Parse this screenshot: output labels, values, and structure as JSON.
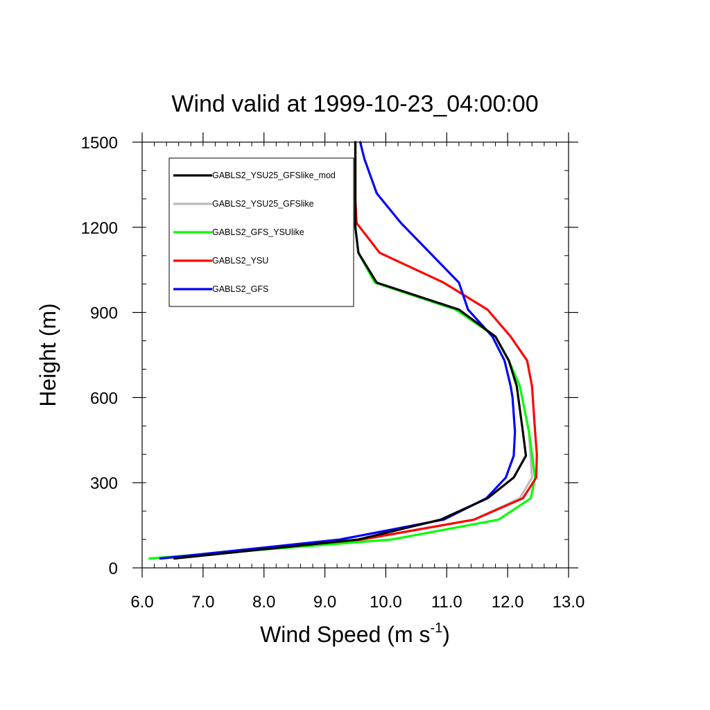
{
  "chart_data": {
    "type": "line",
    "title": "Wind valid at 1999-10-23_04:00:00",
    "xlabel": "Wind Speed (m s",
    "xlabel_sup": "-1",
    "xlabel_tail": ")",
    "ylabel": "Height (m)",
    "xlim": [
      6.0,
      13.0
    ],
    "ylim": [
      0,
      1500
    ],
    "x_ticks": [
      6.0,
      7.0,
      8.0,
      9.0,
      10.0,
      11.0,
      12.0,
      13.0
    ],
    "x_tick_labels": [
      "6.0",
      "7.0",
      "8.0",
      "9.0",
      "10.0",
      "11.0",
      "12.0",
      "13.0"
    ],
    "y_ticks": [
      0,
      300,
      600,
      900,
      1200,
      1500
    ],
    "y_tick_labels": [
      "0",
      "300",
      "600",
      "900",
      "1200",
      "1500"
    ],
    "grid": false,
    "legend_position": "top-left",
    "series": [
      {
        "name": "GABLS2_YSU25_GFSlike_mod",
        "color": "#000000",
        "points": [
          [
            6.53,
            33
          ],
          [
            9.55,
            100
          ],
          [
            10.9,
            170
          ],
          [
            11.67,
            245
          ],
          [
            12.1,
            318
          ],
          [
            12.3,
            395
          ],
          [
            12.25,
            480
          ],
          [
            12.15,
            640
          ],
          [
            12.02,
            730
          ],
          [
            11.8,
            815
          ],
          [
            11.2,
            910
          ],
          [
            9.85,
            1005
          ],
          [
            9.55,
            1110
          ],
          [
            9.5,
            1200
          ],
          [
            9.5,
            1500
          ]
        ]
      },
      {
        "name": "GABLS2_YSU25_GFSlike",
        "color": "#bbbbbb",
        "points": [
          [
            6.28,
            33
          ],
          [
            9.65,
            100
          ],
          [
            11.45,
            170
          ],
          [
            12.2,
            245
          ],
          [
            12.4,
            318
          ],
          [
            12.35,
            480
          ],
          [
            12.2,
            640
          ],
          [
            12.02,
            730
          ],
          [
            11.8,
            815
          ],
          [
            11.15,
            910
          ],
          [
            9.82,
            1005
          ],
          [
            9.55,
            1110
          ],
          [
            9.5,
            1200
          ],
          [
            9.5,
            1500
          ]
        ]
      },
      {
        "name": "GABLS2_GFS_YSUlike",
        "color": "#00ff00",
        "points": [
          [
            6.12,
            33
          ],
          [
            10.1,
            100
          ],
          [
            11.85,
            170
          ],
          [
            12.38,
            245
          ],
          [
            12.45,
            318
          ],
          [
            12.35,
            480
          ],
          [
            12.2,
            640
          ],
          [
            12.02,
            730
          ],
          [
            11.8,
            815
          ],
          [
            11.15,
            910
          ],
          [
            9.82,
            1005
          ],
          [
            9.55,
            1110
          ],
          [
            9.5,
            1200
          ],
          [
            9.5,
            1500
          ]
        ]
      },
      {
        "name": "GABLS2_YSU",
        "color": "#ff0000",
        "points": [
          [
            6.3,
            33
          ],
          [
            9.6,
            100
          ],
          [
            11.45,
            170
          ],
          [
            12.25,
            245
          ],
          [
            12.47,
            318
          ],
          [
            12.48,
            400
          ],
          [
            12.45,
            480
          ],
          [
            12.4,
            640
          ],
          [
            12.32,
            730
          ],
          [
            12.05,
            815
          ],
          [
            11.67,
            910
          ],
          [
            10.95,
            1005
          ],
          [
            9.9,
            1110
          ],
          [
            9.52,
            1215
          ],
          [
            9.5,
            1300
          ],
          [
            9.5,
            1500
          ]
        ]
      },
      {
        "name": "GABLS2_GFS",
        "color": "#0000ff",
        "points": [
          [
            6.3,
            33
          ],
          [
            9.25,
            100
          ],
          [
            10.95,
            170
          ],
          [
            11.65,
            245
          ],
          [
            11.97,
            318
          ],
          [
            12.1,
            395
          ],
          [
            12.12,
            480
          ],
          [
            12.08,
            600
          ],
          [
            12.05,
            640
          ],
          [
            11.95,
            730
          ],
          [
            11.75,
            815
          ],
          [
            11.35,
            910
          ],
          [
            11.2,
            1005
          ],
          [
            10.25,
            1215
          ],
          [
            9.85,
            1320
          ],
          [
            9.65,
            1440
          ],
          [
            9.58,
            1500
          ]
        ]
      }
    ]
  }
}
